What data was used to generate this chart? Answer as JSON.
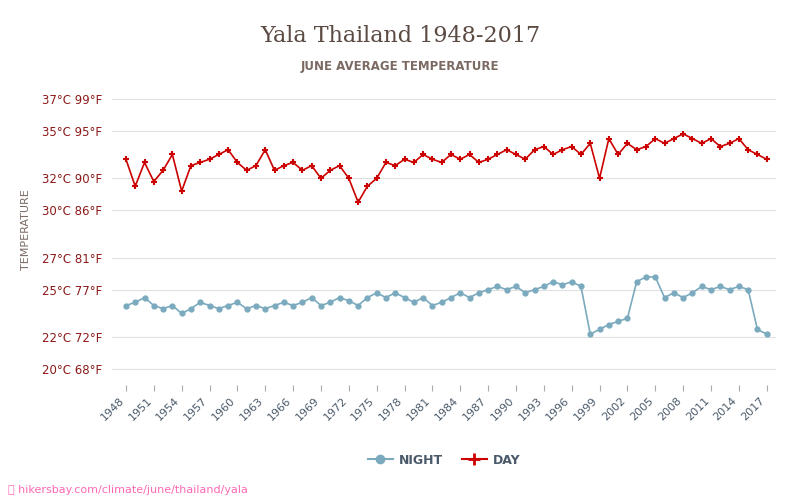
{
  "title": "Yala Thailand 1948-2017",
  "subtitle": "JUNE AVERAGE TEMPERATURE",
  "ylabel": "TEMPERATURE",
  "xlabel_url": "ⓘ hikersbay.com/climate/june/thailand/yala",
  "day_color": "#cc0000",
  "night_color": "#7baabe",
  "title_color": "#5a4a42",
  "subtitle_color": "#7a6a62",
  "axis_label_color": "#7a6a62",
  "tick_color": "#8b1a1a",
  "grid_color": "#e0e0e0",
  "background_color": "#ffffff",
  "yticks_c": [
    20,
    22,
    25,
    27,
    30,
    32,
    35,
    37
  ],
  "yticks_f": [
    68,
    72,
    77,
    81,
    86,
    90,
    95,
    99
  ],
  "ylim": [
    19,
    38.5
  ],
  "day_years": [
    1948,
    1949,
    1950,
    1951,
    1952,
    1953,
    1954,
    1955,
    1956,
    1957,
    1958,
    1959,
    1960,
    1961,
    1962,
    1963,
    1964,
    1965,
    1966,
    1967,
    1968,
    1969,
    1970,
    1971,
    1972,
    1973,
    1974,
    1975,
    1976,
    1977,
    1978,
    1979,
    1980,
    1981,
    1982,
    1983,
    1984,
    1985,
    1986,
    1987,
    1988,
    1989,
    1990,
    1991,
    1992,
    1993,
    1994,
    1995,
    1996,
    1997,
    1998,
    1999,
    2000,
    2001,
    2002,
    2003,
    2004,
    2005,
    2006,
    2007,
    2008,
    2009,
    2010,
    2011,
    2012,
    2013,
    2014,
    2015,
    2016,
    2017
  ],
  "day_vals": [
    33.2,
    31.5,
    33.0,
    31.8,
    32.5,
    33.5,
    31.2,
    32.8,
    33.0,
    33.2,
    33.5,
    33.8,
    33.0,
    32.5,
    32.8,
    33.8,
    32.5,
    32.8,
    33.0,
    32.5,
    32.8,
    32.0,
    32.5,
    32.8,
    32.0,
    30.5,
    31.5,
    32.0,
    33.0,
    32.8,
    33.2,
    33.0,
    33.5,
    33.2,
    33.0,
    33.5,
    33.2,
    33.5,
    33.0,
    33.2,
    33.5,
    33.8,
    33.5,
    33.2,
    33.8,
    34.0,
    33.5,
    33.8,
    34.0,
    33.5,
    34.2,
    32.0,
    34.5,
    33.5,
    34.2,
    33.8,
    34.0,
    34.5,
    34.2,
    34.5,
    34.8,
    34.5,
    34.2,
    34.5,
    34.0,
    34.2,
    34.5,
    33.8,
    33.5,
    33.2
  ],
  "night_years": [
    1948,
    1949,
    1950,
    1951,
    1952,
    1953,
    1954,
    1955,
    1956,
    1957,
    1958,
    1959,
    1960,
    1961,
    1962,
    1963,
    1964,
    1965,
    1966,
    1967,
    1968,
    1969,
    1970,
    1971,
    1972,
    1973,
    1974,
    1975,
    1976,
    1977,
    1978,
    1979,
    1980,
    1981,
    1982,
    1983,
    1984,
    1985,
    1986,
    1987,
    1988,
    1989,
    1990,
    1991,
    1992,
    1993,
    1994,
    1995,
    1996,
    1997,
    1998,
    1999,
    2000,
    2001,
    2002,
    2003,
    2004,
    2005,
    2006,
    2007,
    2008,
    2009,
    2010,
    2011,
    2012,
    2013,
    2014,
    2015,
    2016,
    2017
  ],
  "night_vals": [
    24.0,
    24.2,
    24.5,
    24.0,
    23.8,
    24.0,
    23.5,
    23.8,
    24.2,
    24.0,
    23.8,
    24.0,
    24.2,
    23.8,
    24.0,
    23.8,
    24.0,
    24.2,
    24.0,
    24.2,
    24.5,
    24.0,
    24.2,
    24.5,
    24.3,
    24.0,
    24.5,
    24.8,
    24.5,
    24.8,
    24.5,
    24.2,
    24.5,
    24.0,
    24.2,
    24.5,
    24.8,
    24.5,
    24.8,
    25.0,
    25.2,
    25.0,
    25.2,
    24.8,
    25.0,
    25.2,
    25.5,
    25.3,
    25.5,
    25.2,
    22.2,
    22.5,
    22.8,
    23.0,
    23.2,
    25.5,
    25.8,
    25.8,
    24.5,
    24.8,
    24.5,
    24.8,
    25.2,
    25.0,
    25.2,
    25.0,
    25.2,
    25.0,
    22.5,
    22.2
  ]
}
